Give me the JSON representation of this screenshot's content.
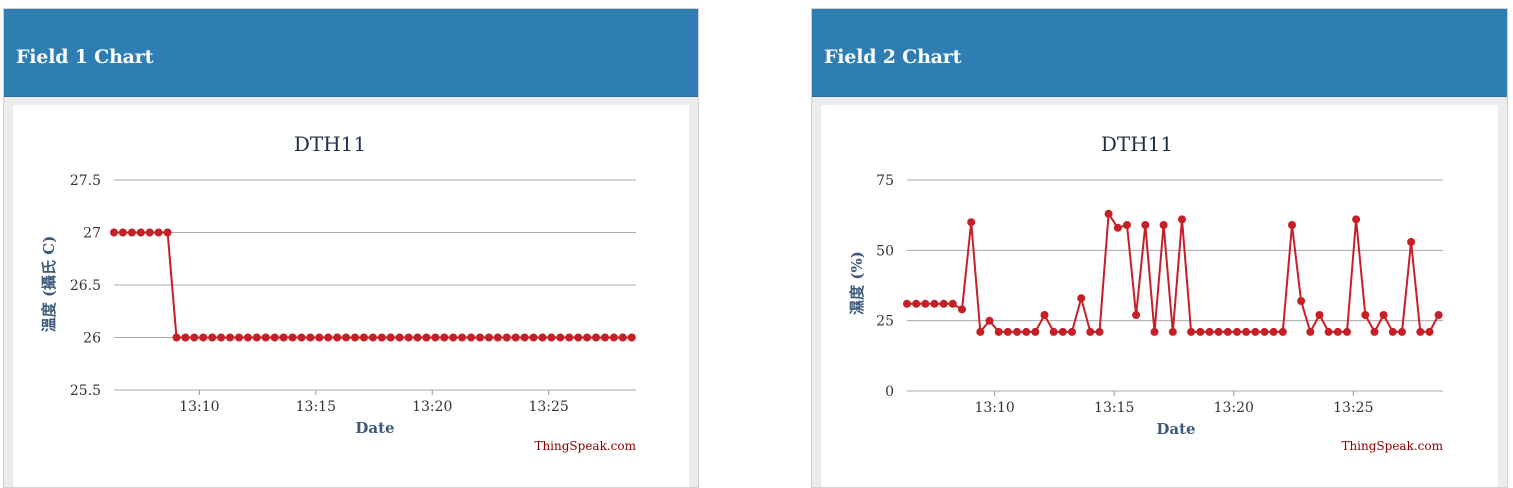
{
  "panels": [
    {
      "header_title": "Field 1 Chart"
    },
    {
      "header_title": "Field 2 Chart"
    }
  ],
  "colors": {
    "header": "#2e7eb3",
    "series": "#c62026",
    "grid": "#aaaaaa"
  },
  "chart_data": [
    {
      "type": "line",
      "title": "DTH11",
      "xlabel": "Date",
      "ylabel": "溫度 (攝氏 C)",
      "credit": "ThingSpeak.com",
      "xlim": [
        "13:06:20",
        "13:28:45"
      ],
      "ylim": [
        25.5,
        27.5
      ],
      "yticks": [
        27.5,
        27,
        26.5,
        26,
        25.5
      ],
      "ytick_labels": [
        "27.5",
        "27",
        "26.5",
        "26",
        "25.5"
      ],
      "xticks": [
        "13:10",
        "13:15",
        "13:20",
        "13:25"
      ],
      "grid": true,
      "legend": "none",
      "series": [
        {
          "x": [
            "13:06:20",
            "13:06:43",
            "13:07:06",
            "13:07:29",
            "13:07:52",
            "13:08:15",
            "13:08:38",
            "13:09:01",
            "13:09:24",
            "13:09:47",
            "13:10:10",
            "13:10:33",
            "13:10:56",
            "13:11:19",
            "13:11:42",
            "13:12:05",
            "13:12:28",
            "13:12:51",
            "13:13:14",
            "13:13:37",
            "13:14:00",
            "13:14:23",
            "13:14:46",
            "13:15:09",
            "13:15:32",
            "13:15:55",
            "13:16:18",
            "13:16:41",
            "13:17:04",
            "13:17:27",
            "13:17:50",
            "13:18:13",
            "13:18:36",
            "13:18:59",
            "13:19:22",
            "13:19:45",
            "13:20:08",
            "13:20:31",
            "13:20:54",
            "13:21:17",
            "13:21:40",
            "13:22:03",
            "13:22:26",
            "13:22:49",
            "13:23:12",
            "13:23:35",
            "13:23:58",
            "13:24:21",
            "13:24:44",
            "13:25:07",
            "13:25:30",
            "13:25:53",
            "13:26:16",
            "13:26:39",
            "13:27:02",
            "13:27:25",
            "13:27:48",
            "13:28:11",
            "13:28:34"
          ],
          "values": [
            27,
            27,
            27,
            27,
            27,
            27,
            27,
            26,
            26,
            26,
            26,
            26,
            26,
            26,
            26,
            26,
            26,
            26,
            26,
            26,
            26,
            26,
            26,
            26,
            26,
            26,
            26,
            26,
            26,
            26,
            26,
            26,
            26,
            26,
            26,
            26,
            26,
            26,
            26,
            26,
            26,
            26,
            26,
            26,
            26,
            26,
            26,
            26,
            26,
            26,
            26,
            26,
            26,
            26,
            26,
            26,
            26,
            26,
            26
          ]
        }
      ]
    },
    {
      "type": "line",
      "title": "DTH11",
      "xlabel": "Date",
      "ylabel": "濕度 (%)",
      "credit": "ThingSpeak.com",
      "xlim": [
        "13:06:20",
        "13:28:45"
      ],
      "ylim": [
        0,
        75
      ],
      "yticks": [
        75,
        50,
        25,
        0
      ],
      "ytick_labels": [
        "75",
        "50",
        "25",
        "0"
      ],
      "xticks": [
        "13:10",
        "13:15",
        "13:20",
        "13:25"
      ],
      "grid": true,
      "legend": "none",
      "series": [
        {
          "x": [
            "13:06:20",
            "13:06:43",
            "13:07:06",
            "13:07:29",
            "13:07:52",
            "13:08:15",
            "13:08:38",
            "13:09:01",
            "13:09:24",
            "13:09:47",
            "13:10:10",
            "13:10:33",
            "13:10:56",
            "13:11:19",
            "13:11:42",
            "13:12:05",
            "13:12:28",
            "13:12:51",
            "13:13:14",
            "13:13:37",
            "13:14:00",
            "13:14:23",
            "13:14:46",
            "13:15:09",
            "13:15:32",
            "13:15:55",
            "13:16:18",
            "13:16:41",
            "13:17:04",
            "13:17:27",
            "13:17:50",
            "13:18:13",
            "13:18:36",
            "13:18:59",
            "13:19:22",
            "13:19:45",
            "13:20:08",
            "13:20:31",
            "13:20:54",
            "13:21:17",
            "13:21:40",
            "13:22:03",
            "13:22:26",
            "13:22:49",
            "13:23:12",
            "13:23:35",
            "13:23:58",
            "13:24:21",
            "13:24:44",
            "13:25:07",
            "13:25:30",
            "13:25:53",
            "13:26:16",
            "13:26:39",
            "13:27:02",
            "13:27:25",
            "13:27:48",
            "13:28:11",
            "13:28:34"
          ],
          "values": [
            31,
            31,
            31,
            31,
            31,
            31,
            29,
            60,
            21,
            25,
            21,
            21,
            21,
            21,
            21,
            27,
            21,
            21,
            21,
            33,
            21,
            21,
            63,
            58,
            59,
            27,
            59,
            21,
            59,
            21,
            61,
            21,
            21,
            21,
            21,
            21,
            21,
            21,
            21,
            21,
            21,
            21,
            59,
            32,
            21,
            27,
            21,
            21,
            21,
            61,
            27,
            21,
            27,
            21,
            21,
            53,
            21,
            21,
            27
          ]
        }
      ]
    }
  ]
}
